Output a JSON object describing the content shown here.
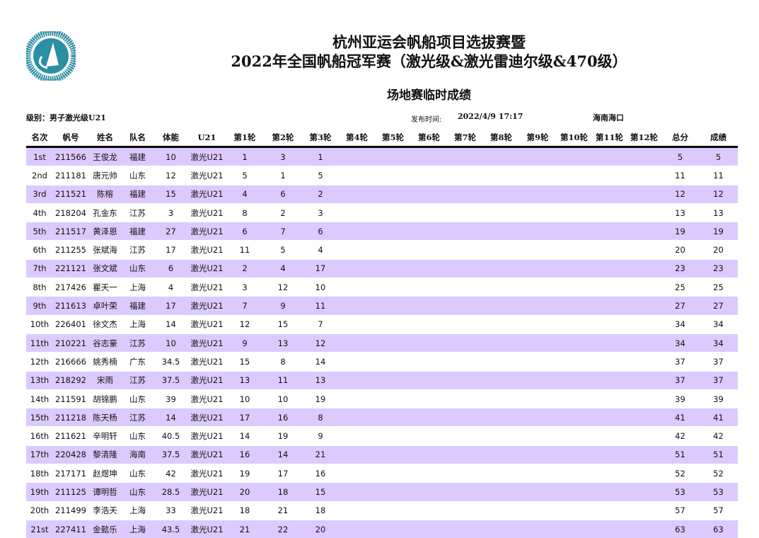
{
  "header": {
    "logo_text": "CHINESE YACHTING ASSOCIATION",
    "title_line1": "杭州亚运会帆船项目选拔赛暨",
    "title_line2": "2022年全国帆船冠军赛（激光级&激光雷迪尔级&470级）",
    "subtitle": "场地赛临时成绩",
    "category": "级别：男子激光级U21",
    "publish_label": "发布时间:",
    "publish_time": "2022/4/9 17:17",
    "location": "海南海口"
  },
  "colors": {
    "row_highlight": "#dccafe",
    "logo": "#2a8fa3"
  },
  "table": {
    "columns": [
      "名次",
      "帆号",
      "姓名",
      "队名",
      "体能",
      "U21",
      "第1轮",
      "第2轮",
      "第3轮",
      "第4轮",
      "第5轮",
      "第6轮",
      "第7轮",
      "第8轮",
      "第9轮",
      "第10轮",
      "第11轮",
      "第12轮",
      "总分",
      "成绩"
    ],
    "rows": [
      [
        "1st",
        "211566",
        "王俊龙",
        "福建",
        "10",
        "激光U21",
        "1",
        "3",
        "1",
        "5",
        "5"
      ],
      [
        "2nd",
        "211181",
        "唐元帅",
        "山东",
        "12",
        "激光U21",
        "5",
        "1",
        "5",
        "11",
        "11"
      ],
      [
        "3rd",
        "211521",
        "陈榕",
        "福建",
        "15",
        "激光U21",
        "4",
        "6",
        "2",
        "12",
        "12"
      ],
      [
        "4th",
        "218204",
        "孔金东",
        "江苏",
        "3",
        "激光U21",
        "8",
        "2",
        "3",
        "13",
        "13"
      ],
      [
        "5th",
        "211517",
        "黄泽恩",
        "福建",
        "27",
        "激光U21",
        "6",
        "7",
        "6",
        "19",
        "19"
      ],
      [
        "6th",
        "211255",
        "张斌海",
        "江苏",
        "17",
        "激光U21",
        "11",
        "5",
        "4",
        "20",
        "20"
      ],
      [
        "7th",
        "221121",
        "张文斌",
        "山东",
        "6",
        "激光U21",
        "2",
        "4",
        "17",
        "23",
        "23"
      ],
      [
        "8th",
        "217426",
        "瞿天一",
        "上海",
        "4",
        "激光U21",
        "3",
        "12",
        "10",
        "25",
        "25"
      ],
      [
        "9th",
        "211613",
        "卓叶荣",
        "福建",
        "17",
        "激光U21",
        "7",
        "9",
        "11",
        "27",
        "27"
      ],
      [
        "10th",
        "226401",
        "徐文杰",
        "上海",
        "14",
        "激光U21",
        "12",
        "15",
        "7",
        "34",
        "34"
      ],
      [
        "11th",
        "210221",
        "谷志豪",
        "江苏",
        "10",
        "激光U21",
        "9",
        "13",
        "12",
        "34",
        "34"
      ],
      [
        "12th",
        "216666",
        "姚秀楠",
        "广东",
        "34.5",
        "激光U21",
        "15",
        "8",
        "14",
        "37",
        "37"
      ],
      [
        "13th",
        "218292",
        "宋雨",
        "江苏",
        "37.5",
        "激光U21",
        "13",
        "11",
        "13",
        "37",
        "37"
      ],
      [
        "14th",
        "211591",
        "胡锦鹏",
        "山东",
        "39",
        "激光U21",
        "10",
        "10",
        "19",
        "39",
        "39"
      ],
      [
        "15th",
        "211218",
        "陈天杨",
        "江苏",
        "14",
        "激光U21",
        "17",
        "16",
        "8",
        "41",
        "41"
      ],
      [
        "16th",
        "211621",
        "辛明轩",
        "山东",
        "40.5",
        "激光U21",
        "14",
        "19",
        "9",
        "42",
        "42"
      ],
      [
        "17th",
        "220428",
        "黎清隆",
        "海南",
        "37.5",
        "激光U21",
        "16",
        "14",
        "21",
        "51",
        "51"
      ],
      [
        "18th",
        "217171",
        "赵煜坤",
        "山东",
        "42",
        "激光U21",
        "19",
        "17",
        "16",
        "52",
        "52"
      ],
      [
        "19th",
        "211125",
        "谭明哲",
        "山东",
        "28.5",
        "激光U21",
        "20",
        "18",
        "15",
        "53",
        "53"
      ],
      [
        "20th",
        "211499",
        "李浩天",
        "上海",
        "33",
        "激光U21",
        "18",
        "21",
        "18",
        "57",
        "57"
      ],
      [
        "21st",
        "227411",
        "金懿乐",
        "上海",
        "43.5",
        "激光U21",
        "21",
        "22",
        "20",
        "63",
        "63"
      ]
    ]
  }
}
